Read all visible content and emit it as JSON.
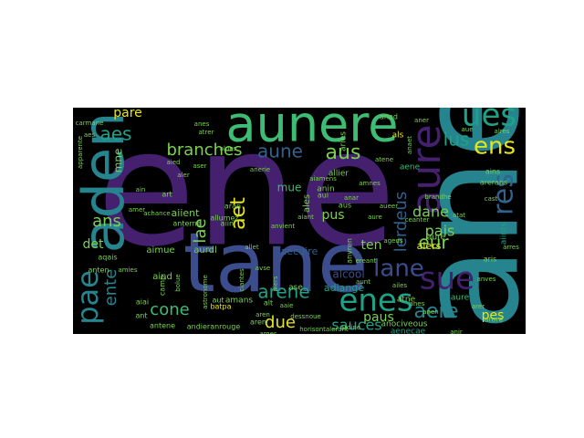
{
  "palette": {
    "purple": "#44206f",
    "indigo": "#3b4d8c",
    "blue": "#31628d",
    "teal": "#25848e",
    "seagreen": "#1fa187",
    "green": "#3dbc74",
    "lime": "#7ad151",
    "yellow": "#e7e419"
  },
  "words": [
    {
      "text": "ene",
      "color": "purple"
    },
    {
      "text": "ane",
      "color": "teal"
    },
    {
      "text": "tane",
      "color": "indigo"
    },
    {
      "text": "aunere",
      "color": "green"
    },
    {
      "text": "aden",
      "color": "teal"
    },
    {
      "text": "aure",
      "color": "purple"
    },
    {
      "text": "ues",
      "color": "seagreen"
    },
    {
      "text": "ens",
      "color": "yellow"
    },
    {
      "text": "aes",
      "color": "seagreen"
    },
    {
      "text": "branches",
      "color": "lime"
    },
    {
      "text": "aune",
      "color": "blue"
    },
    {
      "text": "aus",
      "color": "lime"
    },
    {
      "text": "lus",
      "color": "seagreen"
    },
    {
      "text": "res",
      "color": "blue"
    },
    {
      "text": "sue",
      "color": "purple"
    },
    {
      "text": "lane",
      "color": "indigo"
    },
    {
      "text": "enes",
      "color": "seagreen"
    },
    {
      "text": "pae",
      "color": "teal"
    },
    {
      "text": "ente",
      "color": "teal"
    },
    {
      "text": "ans",
      "color": "lime"
    },
    {
      "text": "aet",
      "color": "yellow"
    },
    {
      "text": "arene",
      "color": "seagreen"
    },
    {
      "text": "aere",
      "color": "teal"
    },
    {
      "text": "cone",
      "color": "green"
    },
    {
      "text": "due",
      "color": "yellow"
    },
    {
      "text": "sauces",
      "color": "seagreen"
    },
    {
      "text": "dane",
      "color": "lime"
    },
    {
      "text": "eur",
      "color": "lime"
    },
    {
      "text": "pare",
      "color": "yellow"
    },
    {
      "text": "pais",
      "color": "lime"
    },
    {
      "text": "lae",
      "color": "lime"
    },
    {
      "text": "pus",
      "color": "lime"
    },
    {
      "text": "ten",
      "color": "lime"
    },
    {
      "text": "paus",
      "color": "lime"
    },
    {
      "text": "pes",
      "color": "yellow"
    },
    {
      "text": "lerdeus",
      "color": "blue"
    },
    {
      "text": "det",
      "color": "lime"
    },
    {
      "text": "mne",
      "color": "lime"
    },
    {
      "text": "mue",
      "color": "green"
    },
    {
      "text": "alcool",
      "color": "indigo"
    },
    {
      "text": "aecuire",
      "color": "blue"
    },
    {
      "text": "aiers",
      "color": "yellow"
    },
    {
      "text": "aiient",
      "color": "lime"
    },
    {
      "text": "adiange",
      "color": "seagreen"
    },
    {
      "text": "aind",
      "color": "lime"
    },
    {
      "text": "aimue",
      "color": "lime"
    },
    {
      "text": "aurdl",
      "color": "lime"
    },
    {
      "text": "anin",
      "color": "lime"
    },
    {
      "text": "ales",
      "color": "lime"
    },
    {
      "text": "allier",
      "color": "lime"
    },
    {
      "text": "amans",
      "color": "lime"
    },
    {
      "text": "aries",
      "color": "lime"
    },
    {
      "text": "atne",
      "color": "lime"
    },
    {
      "text": "aene",
      "color": "green"
    },
    {
      "text": "aenecae",
      "color": "seagreen"
    },
    {
      "text": "aiints",
      "color": "seagreen"
    },
    {
      "text": "aure",
      "color": "lime"
    },
    {
      "text": "aure",
      "color": "green"
    },
    {
      "text": "batpa",
      "color": "yellow"
    },
    {
      "text": "andieranrouge",
      "color": "lime"
    },
    {
      "text": "anociveous",
      "color": "lime"
    },
    {
      "text": "aren",
      "color": "lime"
    },
    {
      "text": "antene",
      "color": "lime"
    },
    {
      "text": "anten",
      "color": "lime"
    },
    {
      "text": "aqais",
      "color": "lime"
    },
    {
      "text": "aiai",
      "color": "lime"
    },
    {
      "text": "aran",
      "color": "lime"
    },
    {
      "text": "anterne",
      "color": "lime"
    },
    {
      "text": "aiini",
      "color": "lime"
    },
    {
      "text": "aui",
      "color": "lime"
    },
    {
      "text": "aus",
      "color": "lime"
    },
    {
      "text": "anvren",
      "color": "lime"
    },
    {
      "text": "anad",
      "color": "lime"
    },
    {
      "text": "als",
      "color": "yellow"
    },
    {
      "text": "ains",
      "color": "lime"
    },
    {
      "text": "arerans",
      "color": "lime"
    },
    {
      "text": "arore",
      "color": "lime"
    },
    {
      "text": "aris",
      "color": "lime"
    },
    {
      "text": "ase",
      "color": "lime"
    },
    {
      "text": "ant",
      "color": "lime"
    },
    {
      "text": "art",
      "color": "lime"
    },
    {
      "text": "alt",
      "color": "lime"
    },
    {
      "text": "aut",
      "color": "lime"
    },
    {
      "text": "camp",
      "color": "lime"
    },
    {
      "text": "apparente",
      "color": "lime"
    },
    {
      "text": "anes",
      "color": "lime"
    },
    {
      "text": "allumez",
      "color": "lime"
    },
    {
      "text": "aren",
      "color": "lime"
    },
    {
      "text": "aes",
      "color": "lime"
    },
    {
      "text": "anvient",
      "color": "lime"
    },
    {
      "text": "aiant",
      "color": "lime"
    },
    {
      "text": "aiamens",
      "color": "lime"
    },
    {
      "text": "amnes",
      "color": "lime"
    },
    {
      "text": "anar",
      "color": "lime"
    },
    {
      "text": "aunt",
      "color": "lime"
    },
    {
      "text": "atat",
      "color": "lime"
    },
    {
      "text": "arer",
      "color": "lime"
    },
    {
      "text": "brandhe",
      "color": "lime"
    },
    {
      "text": "ceanter",
      "color": "lime"
    },
    {
      "text": "cast",
      "color": "lime"
    },
    {
      "text": "carmane",
      "color": "lime"
    },
    {
      "text": "aure",
      "color": "lime"
    },
    {
      "text": "horisontalerant",
      "color": "lime"
    },
    {
      "text": "bolue",
      "color": "lime"
    },
    {
      "text": "anaet",
      "color": "lime"
    },
    {
      "text": "aner",
      "color": "lime"
    },
    {
      "text": "anen",
      "color": "lime"
    },
    {
      "text": "aue",
      "color": "lime"
    },
    {
      "text": "aied",
      "color": "lime"
    },
    {
      "text": "aser",
      "color": "lime"
    },
    {
      "text": "aler",
      "color": "lime"
    },
    {
      "text": "anerie",
      "color": "lime"
    },
    {
      "text": "amer",
      "color": "lime"
    },
    {
      "text": "ain",
      "color": "lime"
    },
    {
      "text": "avse",
      "color": "lime"
    },
    {
      "text": "aaie",
      "color": "lime"
    },
    {
      "text": "ciantes",
      "color": "lime"
    },
    {
      "text": "allet",
      "color": "lime"
    },
    {
      "text": "dessnoue",
      "color": "lime"
    },
    {
      "text": "ereant",
      "color": "lime"
    },
    {
      "text": "aiers",
      "color": "lime"
    },
    {
      "text": "ardine",
      "color": "lime"
    },
    {
      "text": "ames",
      "color": "lime"
    },
    {
      "text": "astronome",
      "color": "lime"
    },
    {
      "text": "atene",
      "color": "lime"
    },
    {
      "text": "anir",
      "color": "lime"
    },
    {
      "text": "arres",
      "color": "lime"
    },
    {
      "text": "alres",
      "color": "lime"
    },
    {
      "text": "amies",
      "color": "lime"
    },
    {
      "text": "achance",
      "color": "lime"
    },
    {
      "text": "atrer",
      "color": "lime"
    },
    {
      "text": "alnes",
      "color": "lime"
    },
    {
      "text": "aueer",
      "color": "lime"
    },
    {
      "text": "ageds",
      "color": "lime"
    },
    {
      "text": "ailes",
      "color": "lime"
    },
    {
      "text": "anes",
      "color": "lime"
    },
    {
      "text": "anves",
      "color": "lime"
    }
  ]
}
